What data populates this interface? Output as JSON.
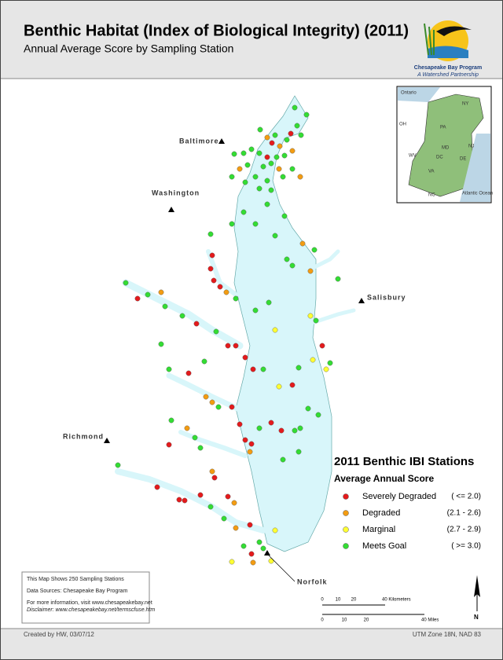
{
  "header": {
    "title": "Benthic Habitat (Index of Biological Integrity) (2011)",
    "subtitle": "Annual Average Score by Sampling Station"
  },
  "logo": {
    "name": "Chesapeake Bay Program",
    "tagline": "A Watershed Partnership"
  },
  "cities": [
    "Baltimore",
    "Washington",
    "Salisbury",
    "Richmond",
    "Norfolk"
  ],
  "inset": {
    "labels": [
      "Ontario",
      "NY",
      "PA",
      "OH",
      "NJ",
      "MD",
      "DC",
      "DE",
      "WV",
      "VA",
      "NC",
      "Atlantic Ocean"
    ]
  },
  "legend": {
    "title": "2011 Benthic IBI Stations",
    "subtitle": "Average Annual Score",
    "items": [
      {
        "label": "Severely Degraded",
        "range": "( <= 2.0)",
        "color": "#e41a1c"
      },
      {
        "label": "Degraded",
        "range": "(2.1 - 2.6)",
        "color": "#f39c12"
      },
      {
        "label": "Marginal",
        "range": "(2.7 - 2.9)",
        "color": "#ffff33"
      },
      {
        "label": "Meets Goal",
        "range": "( >= 3.0)",
        "color": "#33dd33"
      }
    ]
  },
  "notes": [
    "This Map Shows 250 Sampling Stations",
    "Data Sources:  Chesapeake Bay Program",
    "For more information, visit www.chesapeakebay.net",
    "Disclaimer: www.chesapeakebay.net/termscfuse.htm"
  ],
  "scale": {
    "km": [
      "0",
      "10",
      "20",
      "40 Kilometers"
    ],
    "miles": [
      "0",
      "10",
      "20",
      "40 Miles"
    ]
  },
  "north": "N",
  "footer": {
    "left": "Created by HW, 03/07/12",
    "right": "UTM Zone 18N, NAD 83"
  }
}
